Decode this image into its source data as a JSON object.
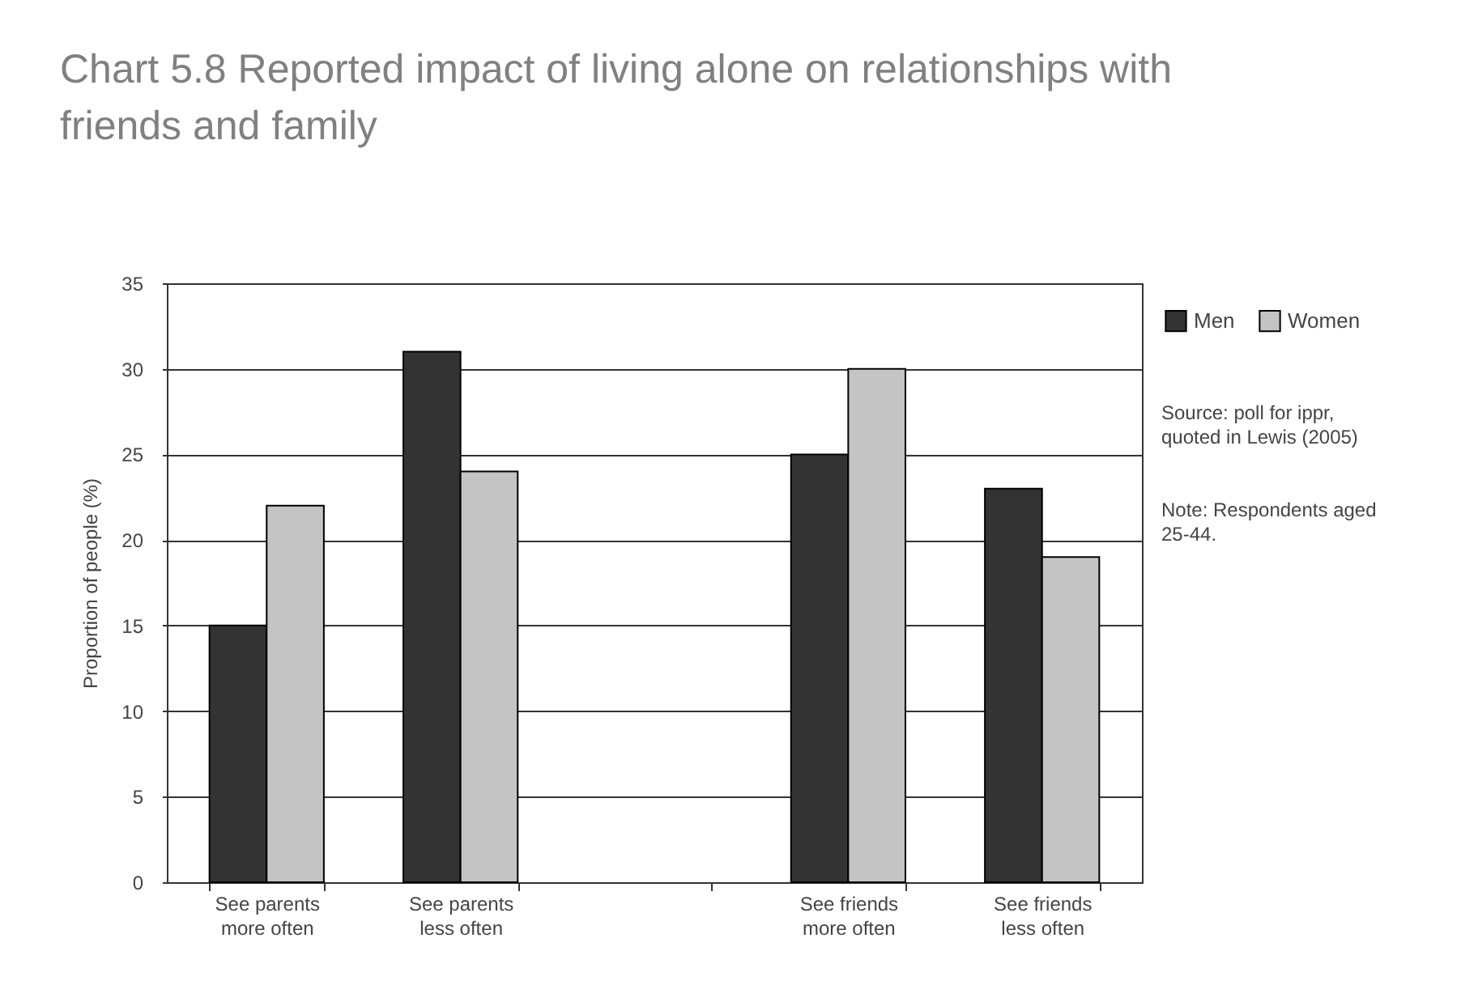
{
  "chart_data": {
    "type": "bar",
    "title": "Chart 5.8 Reported impact of living alone on relationships with friends and family",
    "ylabel": "Proportion of people (%)",
    "categories": [
      "See parents more often",
      "See parents less often",
      null,
      "See friends more often",
      "See friends less often"
    ],
    "series": [
      {
        "name": "Men",
        "color": "#333333",
        "values": [
          15,
          31,
          null,
          25,
          23
        ]
      },
      {
        "name": "Women",
        "color": "#c4c4c4",
        "values": [
          22,
          24,
          null,
          30,
          19
        ]
      }
    ],
    "ylim": [
      0,
      35
    ],
    "yticks": [
      0,
      5,
      10,
      15,
      20,
      25,
      30,
      35
    ],
    "grid": "y",
    "legend": "top right",
    "annotations": [
      "Source: poll for ippr, quoted in Lewis (2005)",
      "Note: Respondents aged 25-44."
    ]
  }
}
